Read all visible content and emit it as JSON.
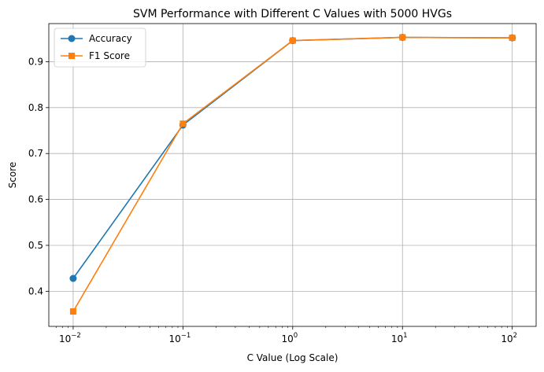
{
  "chart_data": {
    "type": "line",
    "title": "SVM Performance with Different C Values with 5000 HVGs",
    "xlabel": "C Value (Log Scale)",
    "ylabel": "Score",
    "x": [
      0.01,
      0.1,
      1,
      10,
      100
    ],
    "x_scale": "log",
    "xlim": [
      0.006,
      165
    ],
    "ylim": [
      0.3235,
      0.983
    ],
    "x_tick_labels": [
      {
        "base": "10",
        "exp": "−2"
      },
      {
        "base": "10",
        "exp": "−1"
      },
      {
        "base": "10",
        "exp": "0"
      },
      {
        "base": "10",
        "exp": "1"
      },
      {
        "base": "10",
        "exp": "2"
      }
    ],
    "y_ticks": [
      0.4,
      0.5,
      0.6,
      0.7,
      0.8,
      0.9
    ],
    "y_tick_labels": [
      "0.4",
      "0.5",
      "0.6",
      "0.7",
      "0.8",
      "0.9"
    ],
    "grid": true,
    "legend_position": "upper left",
    "series": [
      {
        "name": "Accuracy",
        "values": [
          0.428,
          0.762,
          0.946,
          0.953,
          0.952
        ],
        "color": "#1f77b4",
        "marker": "circle"
      },
      {
        "name": "F1 Score",
        "values": [
          0.356,
          0.765,
          0.946,
          0.953,
          0.952
        ],
        "color": "#ff7f0e",
        "marker": "square"
      }
    ]
  }
}
